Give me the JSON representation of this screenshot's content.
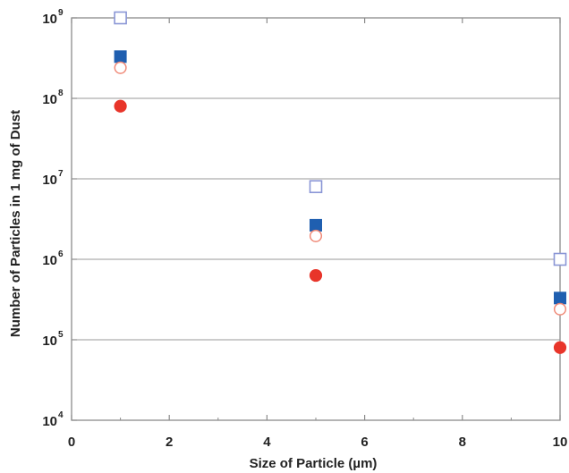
{
  "chart_data": {
    "type": "scatter",
    "title": "",
    "xlabel": "Size of Particle (µm)",
    "ylabel": "Number of Particles in 1 mg of Dust",
    "x_scale": "linear",
    "y_scale": "log",
    "xlim": [
      0,
      10
    ],
    "ylim": [
      10000,
      1000000000
    ],
    "x_ticks": [
      {
        "value": 0,
        "label": "0"
      },
      {
        "value": 2,
        "label": "2"
      },
      {
        "value": 4,
        "label": "4"
      },
      {
        "value": 6,
        "label": "6"
      },
      {
        "value": 8,
        "label": "8"
      },
      {
        "value": 10,
        "label": "10"
      }
    ],
    "y_ticks": [
      {
        "value": 10000,
        "base": "10",
        "exp": "4"
      },
      {
        "value": 100000,
        "base": "10",
        "exp": "5"
      },
      {
        "value": 1000000,
        "base": "10",
        "exp": "6"
      },
      {
        "value": 10000000,
        "base": "10",
        "exp": "7"
      },
      {
        "value": 100000000,
        "base": "10",
        "exp": "8"
      },
      {
        "value": 1000000000,
        "base": "10",
        "exp": "9"
      }
    ],
    "grid": {
      "horizontal": true,
      "vertical": false
    },
    "series": [
      {
        "marker": "square-open",
        "color": "#8a96d6",
        "points": [
          {
            "x": 1,
            "y": 1000000000
          },
          {
            "x": 5,
            "y": 8000000
          },
          {
            "x": 10,
            "y": 1000000
          }
        ]
      },
      {
        "marker": "square-filled",
        "color": "#1f5fb0",
        "points": [
          {
            "x": 1,
            "y": 330000000
          },
          {
            "x": 5,
            "y": 2650000
          },
          {
            "x": 10,
            "y": 330000
          }
        ]
      },
      {
        "marker": "circle-open",
        "color": "#f08a78",
        "points": [
          {
            "x": 1,
            "y": 240000000
          },
          {
            "x": 5,
            "y": 1950000
          },
          {
            "x": 10,
            "y": 240000
          }
        ]
      },
      {
        "marker": "circle-filled",
        "color": "#e8352a",
        "points": [
          {
            "x": 1,
            "y": 80000000
          },
          {
            "x": 5,
            "y": 630000
          },
          {
            "x": 10,
            "y": 80000
          }
        ]
      }
    ]
  }
}
